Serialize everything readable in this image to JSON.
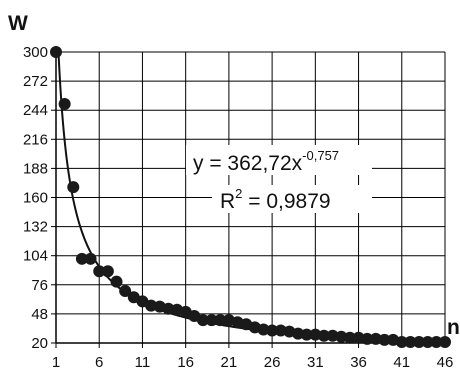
{
  "chart_data": {
    "type": "scatter",
    "ylabel": "W",
    "xlabel": "n",
    "ylim": [
      20,
      300
    ],
    "xlim": [
      1,
      46
    ],
    "y_ticks": [
      "20",
      "48",
      "76",
      "104",
      "132",
      "160",
      "188",
      "216",
      "244",
      "272",
      "300"
    ],
    "y_tick_values": [
      20,
      48,
      76,
      104,
      132,
      160,
      188,
      216,
      244,
      272,
      300
    ],
    "x_ticks": [
      "1",
      "6",
      "11",
      "16",
      "21",
      "26",
      "31",
      "36",
      "41",
      "46"
    ],
    "x_tick_values": [
      1,
      6,
      11,
      16,
      21,
      26,
      31,
      36,
      41,
      46
    ],
    "grid": true,
    "x": [
      1,
      2,
      3,
      4,
      5,
      6,
      7,
      8,
      9,
      10,
      11,
      12,
      13,
      14,
      15,
      16,
      17,
      18,
      19,
      20,
      21,
      22,
      23,
      24,
      25,
      26,
      27,
      28,
      29,
      30,
      31,
      32,
      33,
      34,
      35,
      36,
      37,
      38,
      39,
      40,
      41,
      42,
      43,
      44,
      45,
      46
    ],
    "y": [
      300,
      250,
      170,
      101,
      101,
      89,
      89,
      79,
      70,
      64,
      60,
      56,
      55,
      53,
      52,
      50,
      46,
      42,
      42,
      42,
      42,
      40,
      38,
      35,
      33,
      32,
      32,
      31,
      29,
      28,
      28,
      27,
      27,
      26,
      25,
      25,
      24,
      24,
      23,
      23,
      21,
      21,
      21,
      21,
      21,
      21
    ],
    "trendline": {
      "type": "power",
      "a": 362.72,
      "b": -0.757,
      "equation_prefix": "y = 362,72x",
      "equation_exponent": "-0,757",
      "r2_prefix": "R",
      "r2_exponent": "2",
      "r2_suffix": " = 0,9879"
    },
    "colors": {
      "marker": "#1a1a1a",
      "line": "#111111",
      "grid": "#000000"
    }
  }
}
